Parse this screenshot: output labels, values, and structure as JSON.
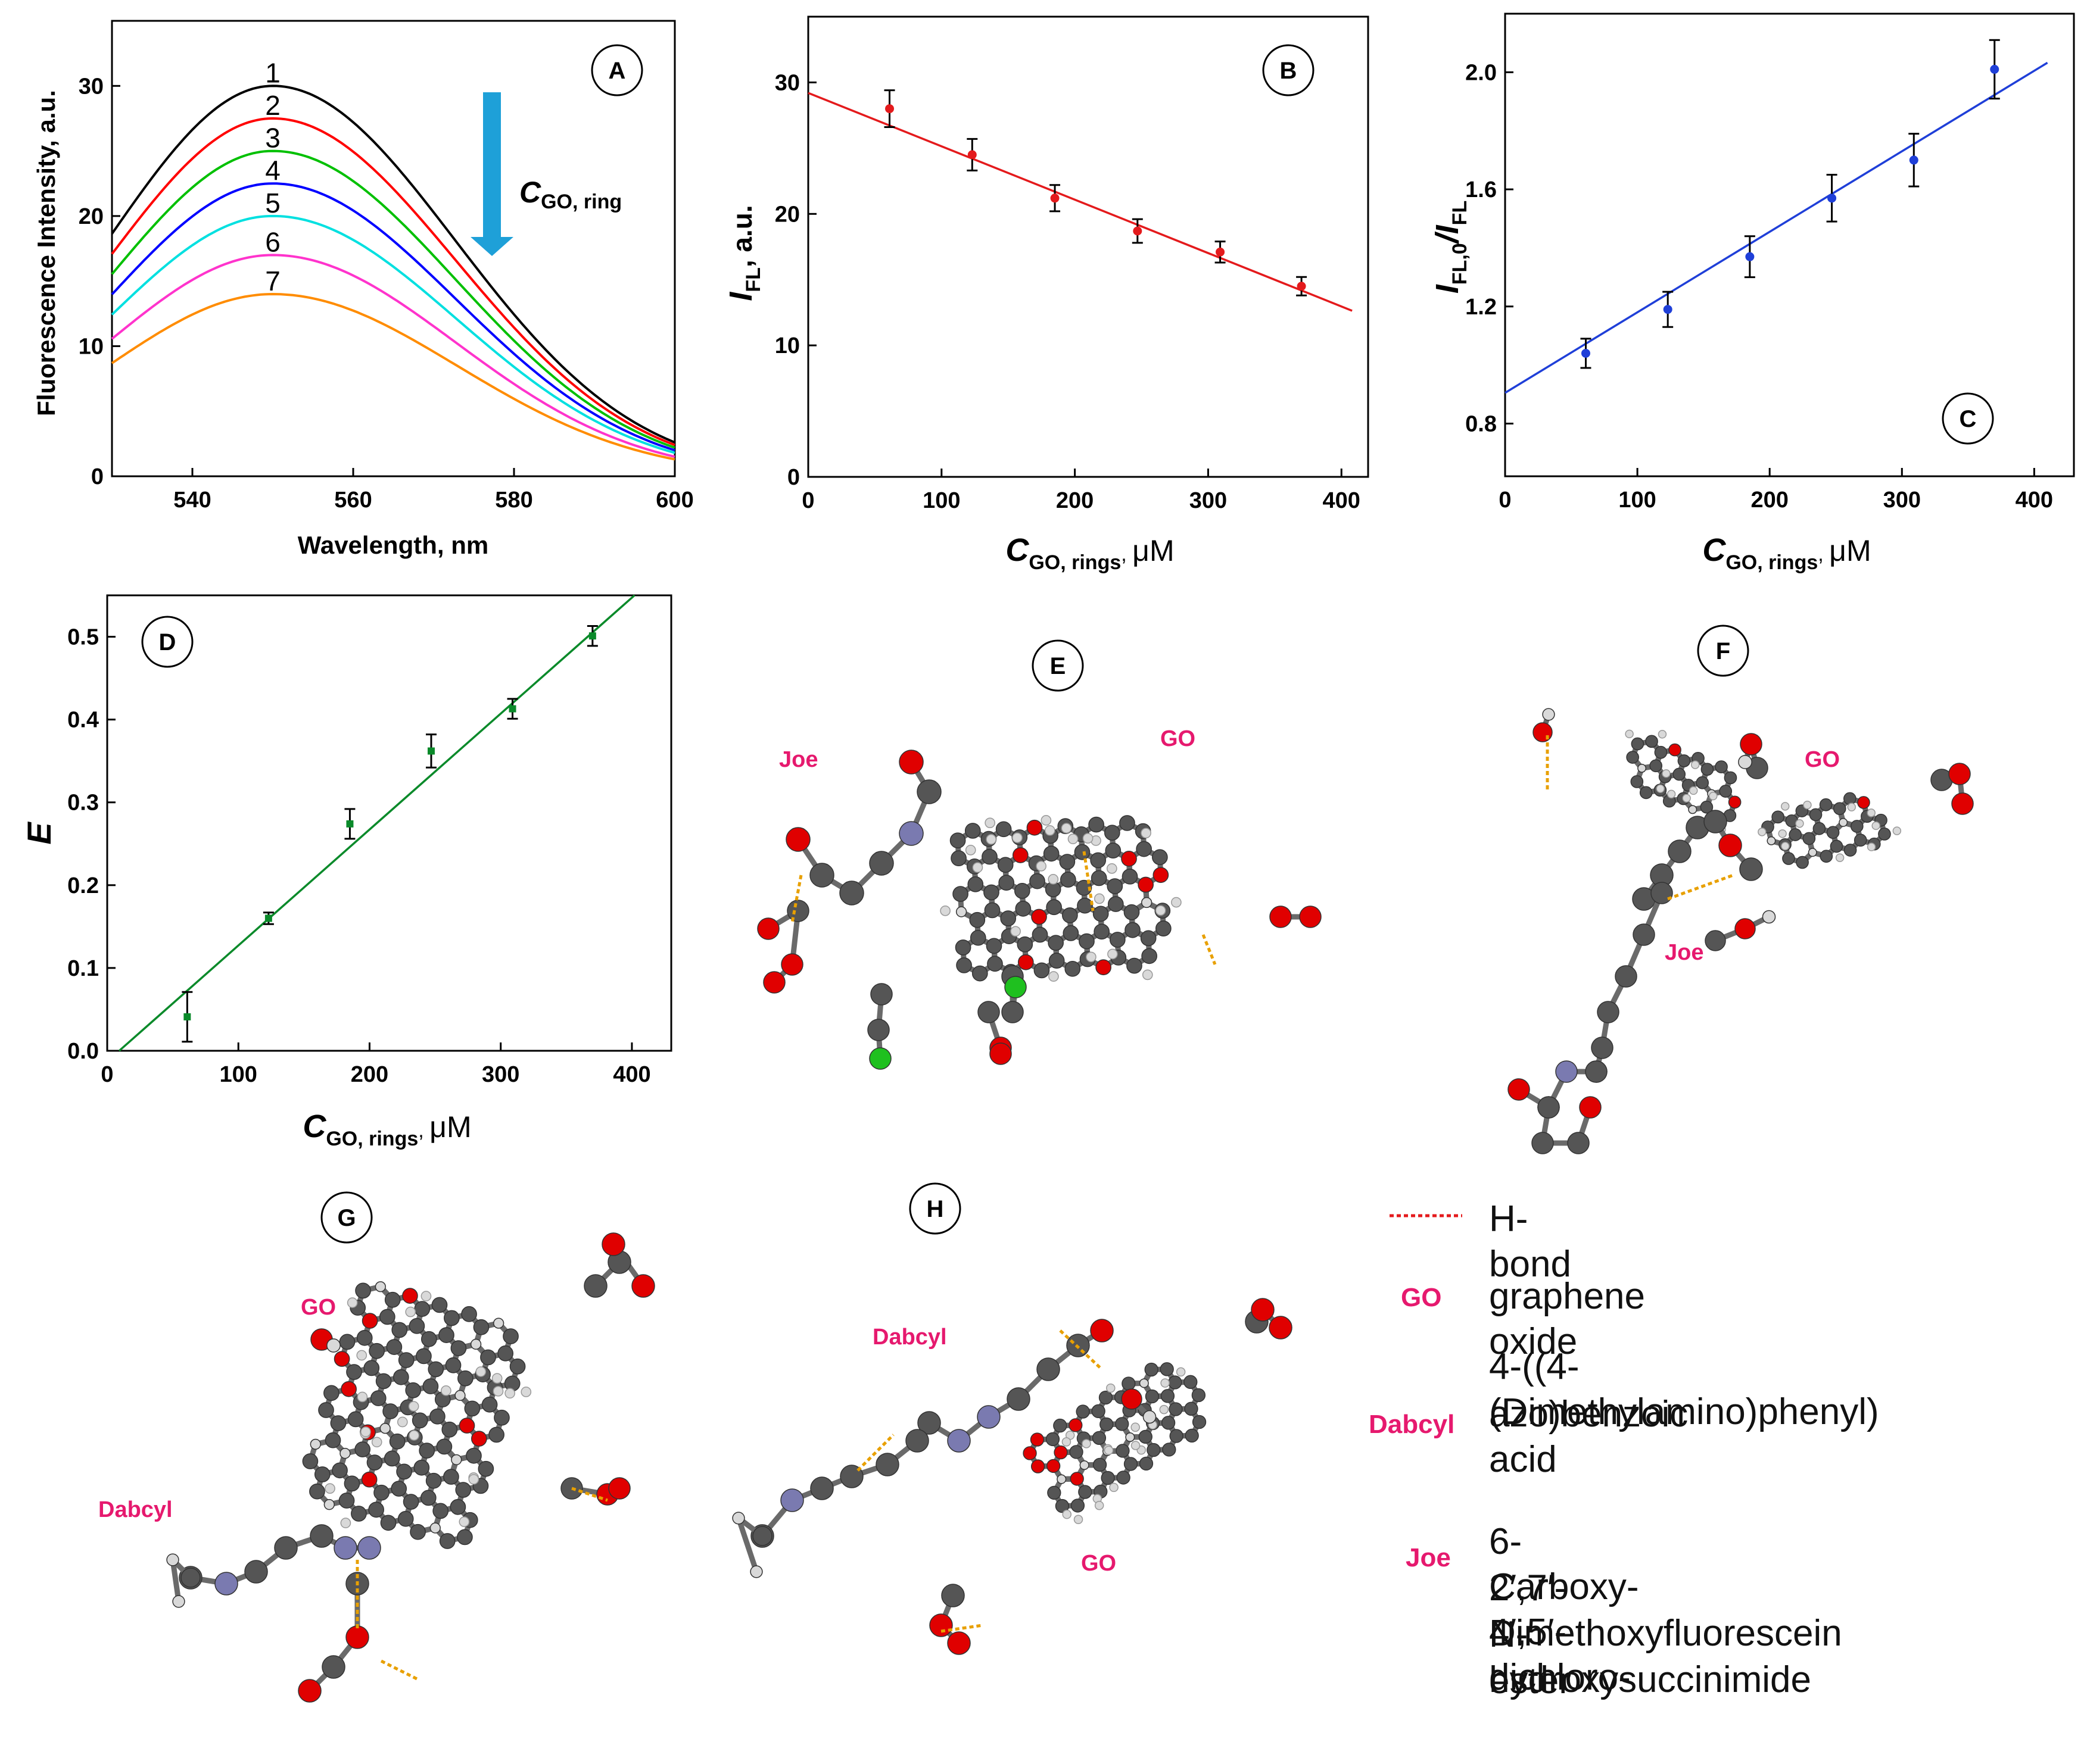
{
  "colors": {
    "frame": "#000000",
    "red": "#e41a1c",
    "blue": "#1f3fd8",
    "green": "#0a8a2a",
    "arrow": "#1ea0d8",
    "pink": "#e6196e",
    "carbon": "#555555",
    "oxygen": "#e00000",
    "hydrogen": "#d9d9d9",
    "nitrogen": "#7a7ab0",
    "chlorine": "#1fc01f",
    "spectra": [
      "#000000",
      "#ff0000",
      "#00c000",
      "#0000ff",
      "#00e0e0",
      "#ff33cc",
      "#ff8c00"
    ]
  },
  "chart_data": [
    {
      "panel": "A",
      "type": "line",
      "xlabel": "Wavelength, nm",
      "ylabel": "Fluorescence Intensity, a.u.",
      "xlim": [
        530,
        600
      ],
      "ylim": [
        0,
        35
      ],
      "xticks": [
        540,
        560,
        580,
        600
      ],
      "yticks": [
        0,
        10,
        20,
        30
      ],
      "arrow_label": {
        "main": "C",
        "sub": "GO, ring"
      },
      "series": [
        {
          "name": "1",
          "peak_x": 550,
          "peak_y": 30.0,
          "y_at_600": 2.6
        },
        {
          "name": "2",
          "peak_x": 550,
          "peak_y": 27.5,
          "y_at_600": 2.4
        },
        {
          "name": "3",
          "peak_x": 550,
          "peak_y": 25.0,
          "y_at_600": 2.2
        },
        {
          "name": "4",
          "peak_x": 550,
          "peak_y": 22.5,
          "y_at_600": 2.0
        },
        {
          "name": "5",
          "peak_x": 550,
          "peak_y": 20.0,
          "y_at_600": 1.8
        },
        {
          "name": "6",
          "peak_x": 550,
          "peak_y": 17.0,
          "y_at_600": 1.5
        },
        {
          "name": "7",
          "peak_x": 550,
          "peak_y": 14.0,
          "y_at_600": 1.3
        }
      ]
    },
    {
      "panel": "B",
      "type": "scatter",
      "xlabel": {
        "main": "C",
        "sub": "GO, rings",
        "unit": "μM"
      },
      "ylabel": {
        "main": "I",
        "sub": "FL",
        "unit": "a.u."
      },
      "xlim": [
        0,
        420
      ],
      "ylim": [
        0,
        35
      ],
      "xticks": [
        0,
        100,
        200,
        300,
        400
      ],
      "yticks": [
        0,
        10,
        20,
        30
      ],
      "x": [
        61,
        123,
        185,
        247,
        309,
        370
      ],
      "y": [
        28.0,
        24.5,
        21.2,
        18.7,
        17.1,
        14.5
      ],
      "err": [
        1.4,
        1.2,
        1.0,
        0.9,
        0.8,
        0.7
      ],
      "fit": {
        "slope": -0.0406,
        "intercept": 29.2,
        "x_end": 408
      }
    },
    {
      "panel": "C",
      "type": "scatter",
      "xlabel": {
        "main": "C",
        "sub": "GO, rings",
        "unit": "μM"
      },
      "ylabel": {
        "main": "I",
        "sub1": "FL,0",
        "mid": "/I",
        "sub2": "FL"
      },
      "xlim": [
        0,
        430
      ],
      "ylim": [
        0.62,
        2.2
      ],
      "xticks": [
        0,
        100,
        200,
        300,
        400
      ],
      "yticks": [
        "0.8",
        "1.2",
        "1.6",
        "2.0"
      ],
      "x": [
        61,
        123,
        185,
        247,
        309,
        370
      ],
      "y": [
        1.04,
        1.19,
        1.37,
        1.57,
        1.7,
        2.01
      ],
      "err": [
        0.05,
        0.06,
        0.07,
        0.08,
        0.09,
        0.1
      ],
      "fit": {
        "slope": 0.00275,
        "intercept": 0.905,
        "x_end": 410
      }
    },
    {
      "panel": "D",
      "type": "scatter",
      "xlabel": {
        "main": "C",
        "sub": "GO, rings",
        "unit": "μM"
      },
      "ylabel": "E",
      "xlim": [
        0,
        430
      ],
      "ylim": [
        0,
        0.55
      ],
      "xticks": [
        0,
        100,
        200,
        300,
        400
      ],
      "yticks": [
        "0.0",
        "0.1",
        "0.2",
        "0.3",
        "0.4",
        "0.5"
      ],
      "x": [
        61,
        123,
        185,
        247,
        309,
        370
      ],
      "y": [
        0.041,
        0.16,
        0.274,
        0.362,
        0.413,
        0.501
      ],
      "err": [
        0.03,
        0.007,
        0.018,
        0.02,
        0.012,
        0.012
      ],
      "fit": {
        "slope": 0.0014,
        "intercept": -0.0128,
        "x_end": 402
      }
    }
  ],
  "panel_labels": [
    "A",
    "B",
    "C",
    "D",
    "E",
    "F",
    "G",
    "H"
  ],
  "molecule_labels": {
    "e_joe": "Joe",
    "e_go": "GO",
    "f_go": "GO",
    "f_joe": "Joe",
    "g_go": "GO",
    "g_dabcyl": "Dabcyl",
    "h_dabcyl": "Dabcyl",
    "h_go": "GO"
  },
  "legend": {
    "hbond": "H-bond",
    "go_name": "GO",
    "go_desc": "graphene oxide",
    "dabcyl_name": "Dabcyl",
    "dabcyl_desc_1": "4-((4-(Dimethylamino)phenyl)",
    "dabcyl_desc_2": "azo)benzoic acid",
    "joe_name": "Joe",
    "joe_desc_1": "6-Carboxy-4′,5′-dichloro-",
    "joe_desc_2": "2′,7′-Dimethoxyfluorescein",
    "joe_desc_3": "N-hydroxysuccinimide",
    "joe_desc_4": "ester"
  }
}
